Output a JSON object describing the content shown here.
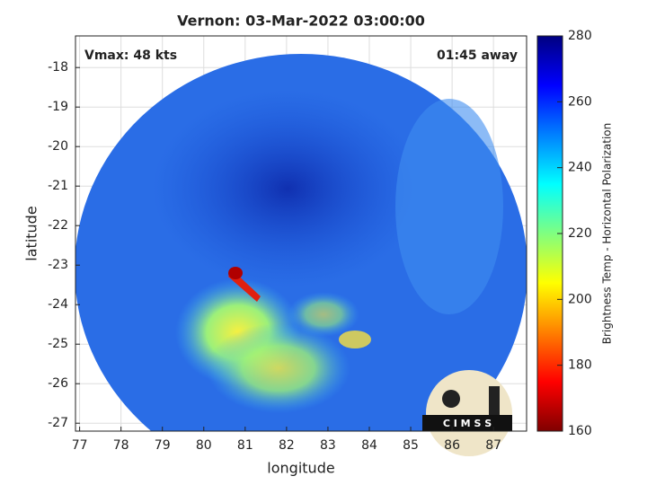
{
  "chart_data": {
    "type": "image",
    "title": "Vernon: 03-Mar-2022 03:00:00",
    "annotations": [
      "Vmax: 48 kts",
      "01:45 away"
    ],
    "x_label": "longitude",
    "y_label": "latitude",
    "xlim": [
      76.9,
      87.8
    ],
    "xticks": [
      77,
      78,
      79,
      80,
      81,
      82,
      83,
      84,
      85,
      86,
      87
    ],
    "ylim": [
      -27.2,
      -17.2
    ],
    "yticks": [
      -27,
      -26,
      -25,
      -24,
      -23,
      -22,
      -21,
      -20,
      -19,
      -18
    ],
    "grid": true,
    "colorbar": {
      "label": "Brightness Temp - Horizontal Polarization",
      "clim": [
        160,
        280
      ],
      "ticks": [
        160,
        180,
        200,
        220,
        240,
        260,
        280
      ],
      "colormap": [
        "#800000",
        "#ff0000",
        "#ff8000",
        "#ffff00",
        "#80ff80",
        "#00ffff",
        "#0080ff",
        "#0000ff",
        "#000080"
      ]
    },
    "logo": "C I M S S"
  }
}
